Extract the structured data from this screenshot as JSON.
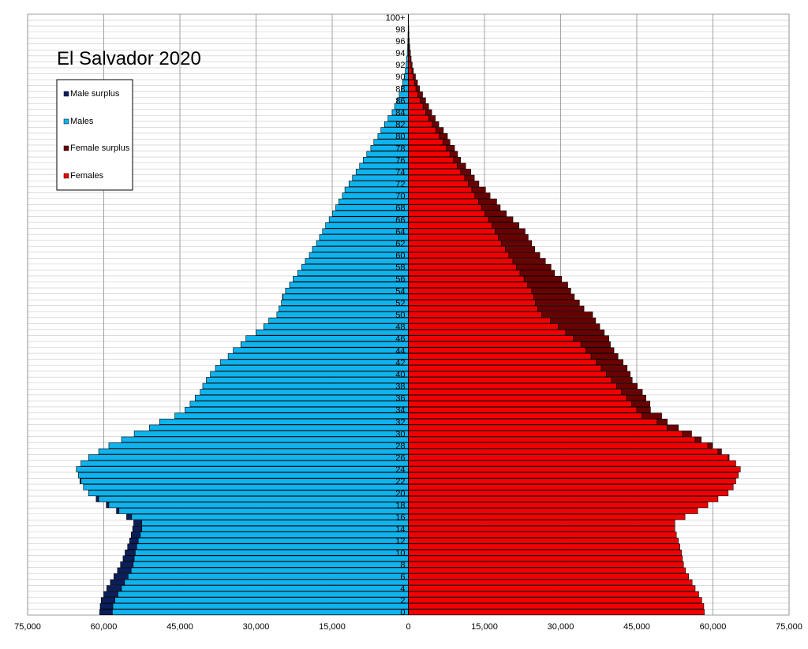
{
  "chart_data": {
    "type": "bar",
    "orientation": "horizontal-population-pyramid",
    "title": "El Salvador 2020",
    "xlim": [
      -75000,
      75000
    ],
    "x_ticks": [
      "75,000",
      "60,000",
      "45,000",
      "30,000",
      "15,000",
      "0",
      "15,000",
      "30,000",
      "45,000",
      "60,000",
      "75,000"
    ],
    "grid": true,
    "legend_position": "top-left",
    "legend": [
      "Male surplus",
      "Males",
      "Female surplus",
      "Females"
    ],
    "colors": {
      "males": "#0fb3ee",
      "male_surplus": "#0b1f5c",
      "females": "#f20000",
      "female_surplus": "#6b0000",
      "grid": "#c8c8c8",
      "border": "#000000"
    },
    "age_labels": [
      "0",
      "2",
      "4",
      "6",
      "8",
      "10",
      "12",
      "14",
      "16",
      "18",
      "20",
      "22",
      "24",
      "26",
      "28",
      "30",
      "32",
      "34",
      "36",
      "38",
      "40",
      "42",
      "44",
      "46",
      "48",
      "50",
      "52",
      "54",
      "56",
      "58",
      "60",
      "62",
      "64",
      "66",
      "68",
      "70",
      "72",
      "74",
      "76",
      "78",
      "80",
      "82",
      "84",
      "86",
      "88",
      "90",
      "92",
      "94",
      "96",
      "98",
      "100+"
    ],
    "ages": [
      "0",
      "1",
      "2",
      "3",
      "4",
      "5",
      "6",
      "7",
      "8",
      "9",
      "10",
      "11",
      "12",
      "13",
      "14",
      "15",
      "16",
      "17",
      "18",
      "19",
      "20",
      "21",
      "22",
      "23",
      "24",
      "25",
      "26",
      "27",
      "28",
      "29",
      "30",
      "31",
      "32",
      "33",
      "34",
      "35",
      "36",
      "37",
      "38",
      "39",
      "40",
      "41",
      "42",
      "43",
      "44",
      "45",
      "46",
      "47",
      "48",
      "49",
      "50",
      "51",
      "52",
      "53",
      "54",
      "55",
      "56",
      "57",
      "58",
      "59",
      "60",
      "61",
      "62",
      "63",
      "64",
      "65",
      "66",
      "67",
      "68",
      "69",
      "70",
      "71",
      "72",
      "73",
      "74",
      "75",
      "76",
      "77",
      "78",
      "79",
      "80",
      "81",
      "82",
      "83",
      "84",
      "85",
      "86",
      "87",
      "88",
      "89",
      "90",
      "91",
      "92",
      "93",
      "94",
      "95",
      "96",
      "97",
      "98",
      "99",
      "100+"
    ],
    "males": [
      60800,
      60700,
      60500,
      60000,
      59400,
      58700,
      58000,
      57300,
      56700,
      56200,
      55800,
      55300,
      54900,
      54600,
      54300,
      54100,
      55500,
      57500,
      59500,
      61500,
      63000,
      64000,
      64700,
      65000,
      65400,
      64500,
      63000,
      61000,
      59000,
      56500,
      54000,
      51000,
      49000,
      46000,
      44000,
      43000,
      42000,
      41000,
      40500,
      39800,
      39000,
      38000,
      37000,
      35500,
      34500,
      33000,
      32000,
      30000,
      28500,
      27500,
      25900,
      25500,
      25000,
      24800,
      24200,
      23400,
      22700,
      21800,
      21000,
      20300,
      19500,
      18900,
      18100,
      17500,
      16900,
      16300,
      15600,
      14900,
      14300,
      13700,
      13000,
      12500,
      11700,
      11000,
      10300,
      9600,
      8900,
      8200,
      7400,
      6800,
      6000,
      5400,
      4700,
      4000,
      3200,
      2700,
      2200,
      1800,
      1400,
      1100,
      800,
      600,
      440,
      320,
      220,
      150,
      100,
      70,
      45,
      30,
      20
    ],
    "females": [
      58300,
      58200,
      57800,
      57200,
      56500,
      55900,
      55200,
      54600,
      54200,
      54000,
      53800,
      53500,
      53200,
      52800,
      52500,
      52500,
      54500,
      57000,
      59000,
      61000,
      63000,
      64000,
      64500,
      65000,
      65400,
      64500,
      63000,
      61000,
      59000,
      56500,
      54000,
      51000,
      49000,
      46000,
      45000,
      44000,
      43000,
      42000,
      41000,
      40000,
      39000,
      38000,
      37000,
      36000,
      35000,
      34000,
      32500,
      31000,
      29500,
      28000,
      26300,
      25500,
      25000,
      24700,
      24300,
      23500,
      22800,
      22000,
      21300,
      20600,
      19800,
      19100,
      18300,
      17700,
      17100,
      16500,
      15800,
      15100,
      14400,
      13800,
      13100,
      12500,
      11800,
      11100,
      10300,
      9600,
      8900,
      8200,
      7500,
      6800,
      6100,
      5400,
      4700,
      4000,
      3400,
      2900,
      2300,
      1900,
      1500,
      1200,
      900,
      700,
      500,
      350,
      250,
      170,
      120,
      80,
      55,
      35,
      20
    ],
    "females_total": [
      58300,
      58200,
      57800,
      57200,
      56500,
      55900,
      55200,
      54600,
      54200,
      54000,
      53800,
      53500,
      53200,
      52800,
      52500,
      52500,
      54500,
      57000,
      59000,
      61000,
      63000,
      64000,
      64500,
      65000,
      65400,
      64500,
      63200,
      61700,
      59900,
      57700,
      55800,
      53200,
      51000,
      49900,
      47700,
      47600,
      46800,
      46100,
      45100,
      44100,
      43700,
      43100,
      42300,
      41300,
      40500,
      39800,
      39500,
      38600,
      37700,
      36900,
      36300,
      34600,
      33700,
      32700,
      32000,
      31400,
      30200,
      28800,
      28100,
      27000,
      25900,
      24900,
      24300,
      23600,
      23000,
      21800,
      20600,
      19300,
      18100,
      17400,
      16100,
      15200,
      13900,
      13000,
      12300,
      11300,
      10300,
      9700,
      9100,
      8200,
      7700,
      6900,
      6000,
      5300,
      4600,
      4000,
      3400,
      2800,
      2200,
      1800,
      1400,
      1000,
      750,
      550,
      400,
      270,
      180,
      120,
      80,
      50,
      30
    ]
  }
}
